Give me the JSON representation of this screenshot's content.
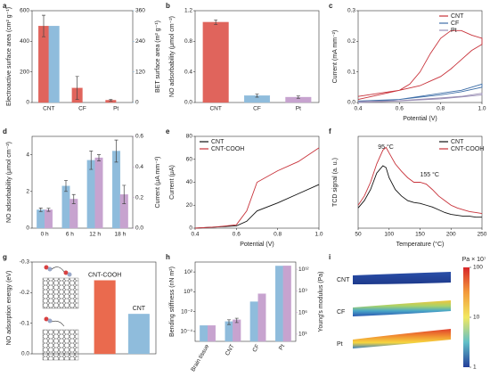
{
  "chart_data": [
    {
      "panel": "a",
      "type": "bar",
      "ylabel": "Electroactive surface area (cm² g⁻¹)",
      "y2label": "BET surface area (m² g⁻¹)",
      "categories": [
        "CNT",
        "CF",
        "Pt"
      ],
      "series": [
        {
          "color": "#e0645c",
          "values": [
            500,
            95,
            15
          ],
          "errors": [
            70,
            75,
            5
          ]
        },
        {
          "color": "#8fbcdc",
          "values": [
            300,
            null,
            null
          ],
          "axis": "y2"
        }
      ],
      "ylim": [
        0,
        600
      ],
      "yticks": [
        0,
        200,
        400,
        600
      ],
      "y2lim": [
        0,
        360
      ],
      "y2ticks": [
        0,
        120,
        240,
        360
      ]
    },
    {
      "panel": "b",
      "type": "bar",
      "ylabel": "NO adsorbability (μmol cm⁻²)",
      "categories": [
        "CNT",
        "CF",
        "Pt"
      ],
      "series": [
        {
          "colors": [
            "#e0645c",
            "#8fbcdc",
            "#c7a3cf"
          ],
          "values": [
            1.05,
            0.09,
            0.07
          ],
          "errors": [
            0.03,
            0.02,
            0.015
          ]
        }
      ],
      "ylim": [
        0,
        1.2
      ],
      "yticks": [
        {
          "value": 0,
          "label": "0.0"
        },
        0.4,
        0.8,
        1.2
      ]
    },
    {
      "panel": "c",
      "type": "line",
      "ylabel": "Current (mA mm⁻²)",
      "xlabel": "Potential (V)",
      "legend": "upper right",
      "series": [
        {
          "name": "CNT",
          "color": "#c8323a",
          "x": [
            0.4,
            0.5,
            0.6,
            0.65,
            0.7,
            0.75,
            0.8,
            0.85,
            0.9,
            0.95,
            1.0,
            1.0,
            0.95,
            0.9,
            0.85,
            0.8,
            0.75,
            0.7,
            0.6,
            0.5,
            0.4
          ],
          "values": [
            0.02,
            0.03,
            0.04,
            0.06,
            0.1,
            0.16,
            0.21,
            0.235,
            0.235,
            0.22,
            0.21,
            0.19,
            0.17,
            0.14,
            0.11,
            0.085,
            0.07,
            0.055,
            0.04,
            0.025,
            0.01
          ]
        },
        {
          "name": "CF",
          "color": "#3f6fa8",
          "x": [
            0.4,
            0.6,
            0.8,
            0.9,
            1.0,
            1.0,
            0.9,
            0.8,
            0.6,
            0.4
          ],
          "values": [
            0.005,
            0.01,
            0.03,
            0.04,
            0.06,
            0.05,
            0.035,
            0.025,
            0.01,
            0.0
          ]
        },
        {
          "name": "Pt",
          "color": "#9a8fb5",
          "x": [
            0.4,
            0.6,
            0.8,
            0.9,
            1.0,
            1.0,
            0.9,
            0.8,
            0.6,
            0.4
          ],
          "values": [
            0.003,
            0.006,
            0.015,
            0.02,
            0.03,
            0.025,
            0.018,
            0.012,
            0.005,
            0.0
          ]
        }
      ],
      "xlim": [
        0.4,
        1.0
      ],
      "xticks": [
        0.4,
        0.6,
        0.8,
        {
          "value": 1,
          "label": "1.0"
        }
      ],
      "ylim": [
        0,
        0.3
      ],
      "yticks": [
        {
          "value": 0,
          "label": "0.0"
        },
        0.1,
        0.2,
        0.3
      ]
    },
    {
      "panel": "d",
      "type": "bar",
      "ylabel": "NO adsorbability (μmol cm⁻²)",
      "y2label": "Current (μA mm⁻²)",
      "categories": [
        "0 h",
        "6 h",
        "12 h",
        "18 h"
      ],
      "series": [
        {
          "color": "#8fbcdc",
          "values": [
            1.0,
            2.3,
            3.7,
            4.2
          ],
          "errors": [
            0.1,
            0.3,
            0.5,
            0.6
          ]
        },
        {
          "color": "#c7a3cf",
          "values": [
            0.12,
            0.19,
            0.46,
            0.22
          ],
          "errors": [
            0.01,
            0.03,
            0.02,
            0.06
          ],
          "axis": "y2"
        }
      ],
      "ylim": [
        0,
        5
      ],
      "yticks": [
        0,
        2,
        4
      ],
      "y2lim": [
        0,
        0.6
      ],
      "y2ticks": [
        {
          "value": 0,
          "label": "0.0"
        },
        0.2,
        0.4,
        0.6
      ]
    },
    {
      "panel": "e",
      "type": "line",
      "ylabel": "Current (μA)",
      "xlabel": "Potential (V)",
      "legend": "upper left",
      "x": [
        0.4,
        0.5,
        0.6,
        0.65,
        0.7,
        0.8,
        0.9,
        1.0
      ],
      "series": [
        {
          "name": "CNT",
          "color": "#111111",
          "values": [
            0,
            1,
            2,
            6,
            15,
            22,
            30,
            38
          ]
        },
        {
          "name": "CNT-COOH",
          "color": "#c8323a",
          "values": [
            0,
            1,
            3,
            15,
            40,
            50,
            58,
            70
          ]
        }
      ],
      "xlim": [
        0.4,
        1.0
      ],
      "xticks": [
        0.4,
        0.6,
        0.8,
        {
          "value": 1,
          "label": "1.0"
        }
      ],
      "ylim": [
        0,
        80
      ],
      "yticks": [
        0,
        20,
        40,
        60,
        80
      ]
    },
    {
      "panel": "f",
      "type": "line",
      "ylabel": "TCD signal (a. u.)",
      "xlabel": "Temperature (°C)",
      "legend": "upper right",
      "annotations": [
        "95 °C",
        "155 °C"
      ],
      "x": [
        50,
        60,
        70,
        80,
        90,
        95,
        100,
        110,
        120,
        130,
        140,
        150,
        160,
        170,
        180,
        190,
        200,
        210,
        220,
        230,
        240,
        250
      ],
      "series": [
        {
          "name": "CNT",
          "color": "#111111",
          "values": [
            0.22,
            0.3,
            0.42,
            0.6,
            0.68,
            0.66,
            0.55,
            0.42,
            0.35,
            0.3,
            0.28,
            0.27,
            0.25,
            0.23,
            0.2,
            0.17,
            0.15,
            0.14,
            0.13,
            0.13,
            0.12,
            0.12
          ]
        },
        {
          "name": "CNT-COOH",
          "color": "#c8323a",
          "values": [
            0.25,
            0.35,
            0.5,
            0.7,
            0.85,
            0.88,
            0.82,
            0.7,
            0.62,
            0.55,
            0.5,
            0.5,
            0.48,
            0.42,
            0.35,
            0.3,
            0.25,
            0.22,
            0.2,
            0.18,
            0.17,
            0.16
          ]
        }
      ],
      "xlim": [
        50,
        250
      ],
      "xticks": [
        50,
        100,
        150,
        200,
        250
      ],
      "ylim": [
        0,
        1
      ],
      "yticks": []
    },
    {
      "panel": "g",
      "type": "bar",
      "ylabel": "NO adsorption energy (eV)",
      "label_position": "top",
      "categories": [
        "CNT-COOH",
        "CNT"
      ],
      "series": [
        {
          "colors": [
            "#ea6a4e",
            "#8fbcdc"
          ],
          "values": [
            -0.24,
            -0.13
          ]
        }
      ],
      "ylim": [
        0,
        -0.3
      ],
      "yticks": [
        {
          "value": 0,
          "label": "0.0"
        },
        -0.1,
        -0.2,
        -0.3
      ]
    },
    {
      "panel": "h",
      "type": "bar",
      "ylabel": "Bending stiffness (nN m²)",
      "y2label": "Young's modulus (Pa)",
      "ylog": true,
      "y2log": true,
      "categories": [
        "Brain tissue",
        "CNT",
        "CF",
        "Pt"
      ],
      "series": [
        {
          "color": "#8fbcdc",
          "values": [
            0.0004,
            0.001,
            0.1,
            400
          ],
          "errors": [
            null,
            0.0005,
            null,
            null
          ]
        },
        {
          "color": "#c7a3cf",
          "values": [
            16000,
            100000,
            400000000,
            3000000000000
          ],
          "errors": [
            null,
            60000,
            null,
            null
          ],
          "axis": "y2"
        }
      ],
      "ylim": [
        1e-05,
        1000
      ],
      "yticks": [
        {
          "value": 0.0001,
          "label": "10⁻⁴"
        },
        {
          "value": 0.01,
          "label": "10⁻²"
        },
        {
          "value": 1,
          "label": "10⁰"
        },
        {
          "value": 100,
          "label": "10²"
        }
      ],
      "y2lim": [
        100,
        10000000000000
      ],
      "y2ticks": [
        {
          "value": 1000,
          "label": "10³"
        },
        {
          "value": 1000000,
          "label": "10⁶"
        },
        {
          "value": 1000000000,
          "label": "10⁹"
        },
        {
          "value": 1000000000000,
          "label": "10¹²"
        }
      ]
    },
    {
      "panel": "i",
      "type": "colormap",
      "rows": [
        "CNT",
        "CF",
        "Pt"
      ],
      "colorbar": {
        "label": "Pa × 10⁷",
        "lim": [
          1,
          100
        ],
        "ticks": [
          1,
          10,
          100
        ],
        "log": true
      }
    }
  ]
}
